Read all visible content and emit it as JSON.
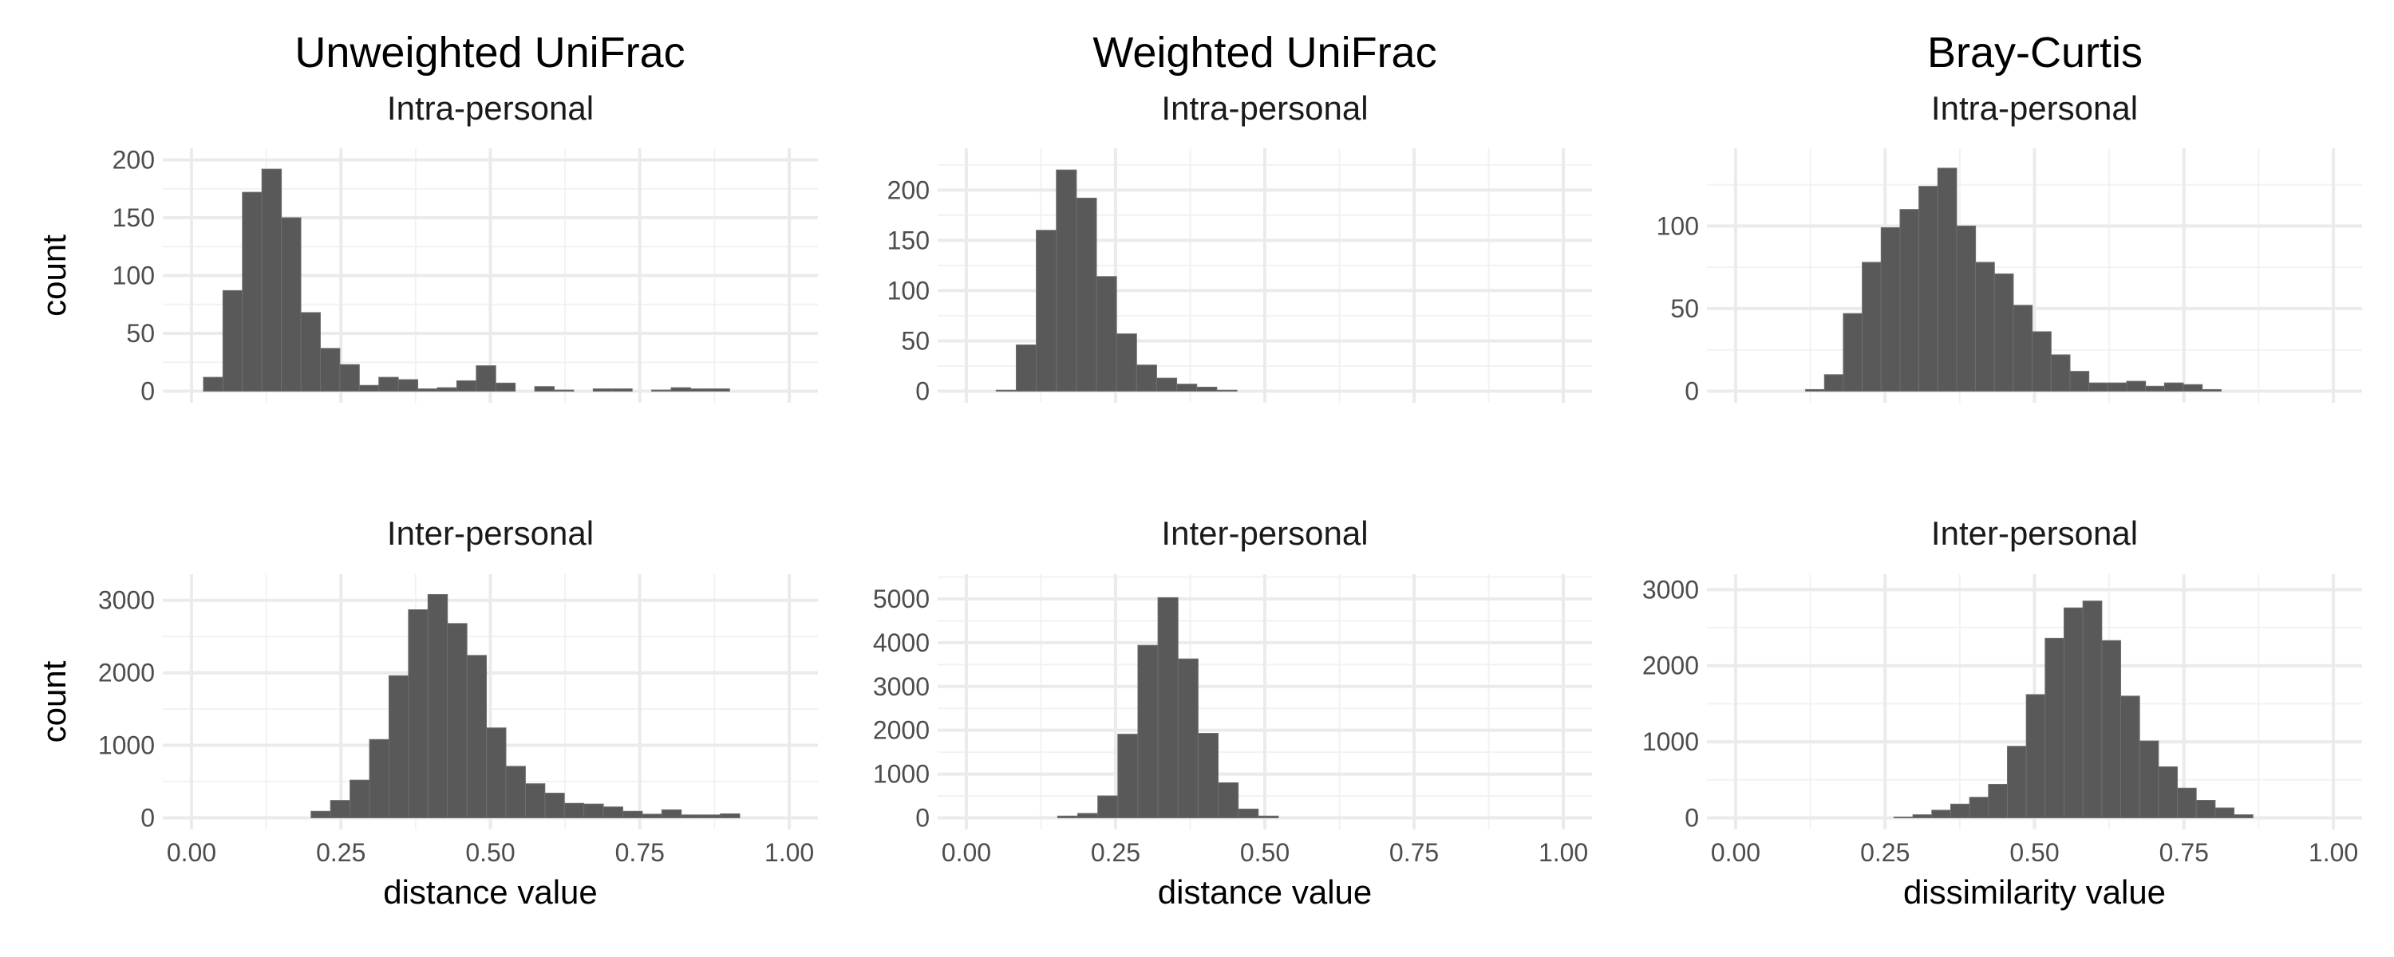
{
  "chart_data": {
    "type": "bar",
    "layout": "3 columns x 2 rows facet grid of histograms",
    "bins": 30,
    "x_breaks": [
      "0.00",
      "0.25",
      "0.50",
      "0.75",
      "1.00"
    ],
    "xlim": [
      0,
      1
    ],
    "panels": [
      {
        "id": "p11",
        "column_title": "Unweighted UniFrac",
        "title": "Intra-personal",
        "ylabel": "count",
        "xlabel": "",
        "show_x_ticks": false,
        "ylim": [
          0,
          200
        ],
        "y_breaks": [
          0,
          50,
          100,
          150,
          200
        ],
        "bin_width": 0.0326,
        "x_start": 0.02,
        "values": [
          12,
          87,
          172,
          192,
          150,
          68,
          37,
          23,
          5,
          12,
          10,
          2,
          3,
          9,
          22,
          7,
          0,
          4,
          1,
          0,
          2,
          2,
          0,
          1,
          3,
          2,
          2,
          0
        ]
      },
      {
        "id": "p12",
        "column_title": "Weighted UniFrac",
        "title": "Intra-personal",
        "ylabel": "",
        "xlabel": "",
        "show_x_ticks": false,
        "ylim": [
          0,
          230
        ],
        "y_breaks": [
          0,
          50,
          100,
          150,
          200
        ],
        "bin_width": 0.0336,
        "x_start": 0.05,
        "values": [
          1,
          46,
          160,
          220,
          192,
          114,
          57,
          26,
          13,
          7,
          4,
          1
        ]
      },
      {
        "id": "p13",
        "column_title": "Bray-Curtis",
        "title": "Intra-personal",
        "ylabel": "",
        "xlabel": "",
        "show_x_ticks": false,
        "ylim": [
          0,
          140
        ],
        "y_breaks": [
          0,
          50,
          100
        ],
        "bin_width": 0.0316,
        "x_start": 0.117,
        "values": [
          1,
          10,
          47,
          78,
          99,
          110,
          124,
          135,
          100,
          78,
          71,
          52,
          36,
          22,
          12,
          5,
          5,
          6,
          3,
          5,
          4,
          1
        ]
      },
      {
        "id": "p21",
        "column_title": "Unweighted UniFrac",
        "title": "Inter-personal",
        "ylabel": "count",
        "xlabel": "distance value",
        "show_x_ticks": true,
        "ylim": [
          0,
          3200
        ],
        "y_breaks": [
          0,
          1000,
          2000,
          3000
        ],
        "bin_width": 0.0326,
        "x_start": 0.2,
        "values": [
          90,
          240,
          520,
          1080,
          1960,
          2870,
          3080,
          2680,
          2240,
          1240,
          710,
          470,
          340,
          200,
          190,
          150,
          90,
          50,
          110,
          40,
          40,
          55
        ]
      },
      {
        "id": "p22",
        "column_title": "Weighted UniFrac",
        "title": "Inter-personal",
        "ylabel": "",
        "xlabel": "distance value",
        "show_x_ticks": true,
        "ylim": [
          0,
          5300
        ],
        "y_breaks": [
          0,
          1000,
          2000,
          3000,
          4000,
          5000
        ],
        "bin_width": 0.0336,
        "x_start": 0.153,
        "values": [
          40,
          100,
          500,
          1910,
          3940,
          5030,
          3630,
          1930,
          800,
          200,
          40
        ]
      },
      {
        "id": "p23",
        "column_title": "Bray-Curtis",
        "title": "Inter-personal",
        "ylabel": "",
        "xlabel": "dissimilarity value",
        "show_x_ticks": true,
        "ylim": [
          0,
          3050
        ],
        "y_breaks": [
          0,
          1000,
          2000,
          3000
        ],
        "bin_width": 0.0316,
        "x_start": 0.265,
        "values": [
          10,
          40,
          100,
          180,
          270,
          440,
          940,
          1620,
          2360,
          2760,
          2850,
          2330,
          1600,
          1010,
          670,
          390,
          230,
          130,
          40
        ]
      }
    ]
  }
}
